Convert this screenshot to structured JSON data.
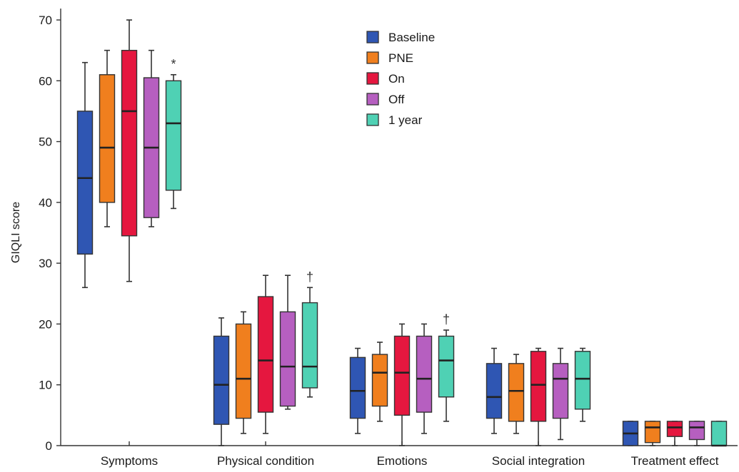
{
  "chart_data": {
    "type": "box",
    "ylabel": "GIQLI score",
    "ylim": [
      0,
      70
    ],
    "yticks": [
      0,
      10,
      20,
      30,
      40,
      50,
      60,
      70
    ],
    "categories": [
      "Symptoms",
      "Physical condition",
      "Emotions",
      "Social integration",
      "Treatment effect"
    ],
    "legend_position": "top-center",
    "grid": false,
    "series": [
      {
        "name": "Baseline",
        "color": "#2f56b3",
        "boxes": [
          {
            "min": 26,
            "q1": 31.5,
            "median": 44,
            "q3": 55,
            "max": 63
          },
          {
            "min": 0,
            "q1": 3.5,
            "median": 10,
            "q3": 18,
            "max": 21
          },
          {
            "min": 2,
            "q1": 4.5,
            "median": 9,
            "q3": 14.5,
            "max": 16
          },
          {
            "min": 2,
            "q1": 4.5,
            "median": 8,
            "q3": 13.5,
            "max": 16
          },
          {
            "min": 0,
            "q1": 0,
            "median": 2,
            "q3": 4,
            "max": 4
          }
        ]
      },
      {
        "name": "PNE",
        "color": "#f07f1e",
        "boxes": [
          {
            "min": 36,
            "q1": 40,
            "median": 49,
            "q3": 61,
            "max": 65
          },
          {
            "min": 2,
            "q1": 4.5,
            "median": 11,
            "q3": 20,
            "max": 22
          },
          {
            "min": 4,
            "q1": 6.5,
            "median": 12,
            "q3": 15,
            "max": 17
          },
          {
            "min": 2,
            "q1": 4,
            "median": 9,
            "q3": 13.5,
            "max": 15
          },
          {
            "min": 0,
            "q1": 0.5,
            "median": 3,
            "q3": 4,
            "max": 4
          }
        ]
      },
      {
        "name": "On",
        "color": "#e5173f",
        "boxes": [
          {
            "min": 27,
            "q1": 34.5,
            "median": 55,
            "q3": 65,
            "max": 70
          },
          {
            "min": 2,
            "q1": 5.5,
            "median": 14,
            "q3": 24.5,
            "max": 28
          },
          {
            "min": 0,
            "q1": 5,
            "median": 12,
            "q3": 18,
            "max": 20
          },
          {
            "min": 0,
            "q1": 4,
            "median": 10,
            "q3": 15.5,
            "max": 16
          },
          {
            "min": 0,
            "q1": 1.5,
            "median": 3,
            "q3": 4,
            "max": 4
          }
        ]
      },
      {
        "name": "Off",
        "color": "#b65fc0",
        "boxes": [
          {
            "min": 36,
            "q1": 37.5,
            "median": 49,
            "q3": 60.5,
            "max": 65
          },
          {
            "min": 6,
            "q1": 6.5,
            "median": 13,
            "q3": 22,
            "max": 28
          },
          {
            "min": 2,
            "q1": 5.5,
            "median": 11,
            "q3": 18,
            "max": 20
          },
          {
            "min": 1,
            "q1": 4.5,
            "median": 11,
            "q3": 13.5,
            "max": 16
          },
          {
            "min": 0,
            "q1": 1,
            "median": 3,
            "q3": 4,
            "max": 4
          }
        ]
      },
      {
        "name": "1 year",
        "color": "#4fd1b4",
        "boxes": [
          {
            "min": 39,
            "q1": 42,
            "median": 53,
            "q3": 60,
            "max": 61
          },
          {
            "min": 8,
            "q1": 9.5,
            "median": 13,
            "q3": 23.5,
            "max": 26
          },
          {
            "min": 4,
            "q1": 8,
            "median": 14,
            "q3": 18,
            "max": 19
          },
          {
            "min": 4,
            "q1": 6,
            "median": 11,
            "q3": 15.5,
            "max": 16
          },
          {
            "min": 0,
            "q1": 0,
            "median": 0,
            "q3": 4,
            "max": 4
          }
        ]
      }
    ],
    "annotations": [
      {
        "text": "*",
        "category": "Symptoms",
        "series": "1 year",
        "value": 61
      },
      {
        "text": "†",
        "category": "Physical condition",
        "series": "1 year",
        "value": 26
      },
      {
        "text": "†",
        "category": "Emotions",
        "series": "1 year",
        "value": 19
      }
    ]
  }
}
